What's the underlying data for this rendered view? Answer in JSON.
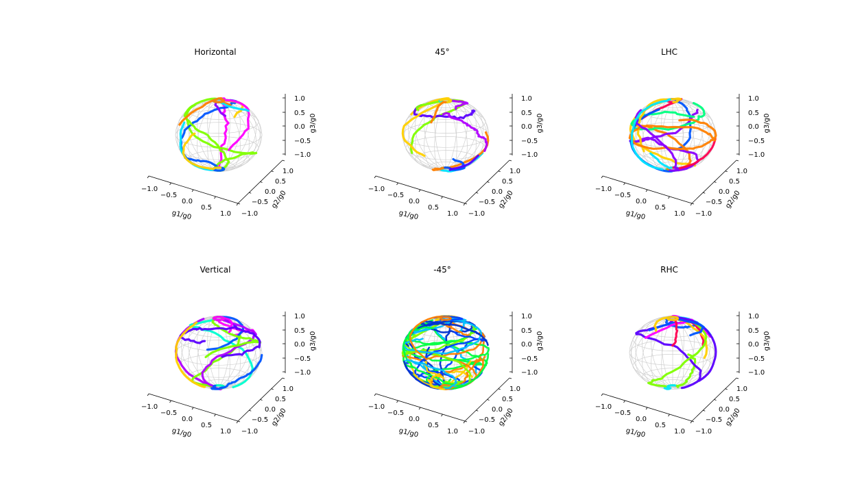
{
  "figure": {
    "background": "#ffffff"
  },
  "chart_data": [
    {
      "type": "scatter",
      "title": "Horizontal",
      "xlabel": "g1/g0",
      "ylabel": "g2/g0",
      "zlabel": "g3/g0",
      "xlim": [
        -1.0,
        1.0
      ],
      "ylim": [
        -1.0,
        1.0
      ],
      "zlim": [
        -1.0,
        1.0
      ],
      "x_ticks": [
        "−1.0",
        "−0.5",
        "0.0",
        "0.5",
        "1.0"
      ],
      "y_ticks": [
        "−1.0",
        "−0.5",
        "0.0",
        "0.5",
        "1.0"
      ],
      "z_ticks": [
        "−1.0",
        "−0.5",
        "0.0",
        "0.5",
        "1.0"
      ],
      "grid": true,
      "wireframe_sphere": true,
      "colormap": "hsv",
      "colors": [
        "#8a00ff",
        "#ff00ff",
        "#7fff00",
        "#0055ff",
        "#00e5ff",
        "#ffd000",
        "#ff7f00"
      ]
    },
    {
      "type": "scatter",
      "title": "45°",
      "xlabel": "g1/g0",
      "ylabel": "g2/g0",
      "zlabel": "g3/g0",
      "xlim": [
        -1.0,
        1.0
      ],
      "ylim": [
        -1.0,
        1.0
      ],
      "zlim": [
        -1.0,
        1.0
      ],
      "x_ticks": [
        "−1.0",
        "−0.5",
        "0.0",
        "0.5",
        "1.0"
      ],
      "y_ticks": [
        "−1.0",
        "−0.5",
        "0.0",
        "0.5",
        "1.0"
      ],
      "z_ticks": [
        "−1.0",
        "−0.5",
        "0.0",
        "0.5",
        "1.0"
      ],
      "grid": true,
      "wireframe_sphere": true,
      "colormap": "hsv",
      "colors": [
        "#7fff00",
        "#b000ff",
        "#00e5ff",
        "#0055ff",
        "#ffd000",
        "#ff7f00",
        "#5a00ff"
      ]
    },
    {
      "type": "scatter",
      "title": "LHC",
      "xlabel": "g1/g0",
      "ylabel": "g2/g0",
      "zlabel": "g3/g0",
      "xlim": [
        -1.0,
        1.0
      ],
      "ylim": [
        -1.0,
        1.0
      ],
      "zlim": [
        -1.0,
        1.0
      ],
      "x_ticks": [
        "−1.0",
        "−0.5",
        "0.0",
        "0.5",
        "1.0"
      ],
      "y_ticks": [
        "−1.0",
        "−0.5",
        "0.0",
        "0.5",
        "1.0"
      ],
      "z_ticks": [
        "−1.0",
        "−0.5",
        "0.0",
        "0.5",
        "1.0"
      ],
      "grid": true,
      "wireframe_sphere": true,
      "colormap": "hsv",
      "colors": [
        "#ff0050",
        "#00ff80",
        "#0055ff",
        "#ffd000",
        "#ff7f00",
        "#8a00ff",
        "#00e5ff"
      ]
    },
    {
      "type": "scatter",
      "title": "Vertical",
      "xlabel": "g1/g0",
      "ylabel": "g2/g0",
      "zlabel": "g3/g0",
      "xlim": [
        -1.0,
        1.0
      ],
      "ylim": [
        -1.0,
        1.0
      ],
      "zlim": [
        -1.0,
        1.0
      ],
      "x_ticks": [
        "−1.0",
        "−0.5",
        "0.0",
        "0.5",
        "1.0"
      ],
      "y_ticks": [
        "−1.0",
        "−0.5",
        "0.0",
        "0.5",
        "1.0"
      ],
      "z_ticks": [
        "−1.0",
        "−0.5",
        "0.0",
        "0.5",
        "1.0"
      ],
      "grid": true,
      "wireframe_sphere": true,
      "colormap": "hsv",
      "colors": [
        "#b000ff",
        "#7fff00",
        "#00ffd0",
        "#ff00ff",
        "#5a00ff",
        "#ffd000",
        "#0055ff"
      ]
    },
    {
      "type": "scatter",
      "title": "-45°",
      "xlabel": "g1/g0",
      "ylabel": "g2/g0",
      "zlabel": "g3/g0",
      "xlim": [
        -1.0,
        1.0
      ],
      "ylim": [
        -1.0,
        1.0
      ],
      "zlim": [
        -1.0,
        1.0
      ],
      "x_ticks": [
        "−1.0",
        "−0.5",
        "0.0",
        "0.5",
        "1.0"
      ],
      "y_ticks": [
        "−1.0",
        "−0.5",
        "0.0",
        "0.5",
        "1.0"
      ],
      "z_ticks": [
        "−1.0",
        "−0.5",
        "0.0",
        "0.5",
        "1.0"
      ],
      "grid": true,
      "wireframe_sphere": true,
      "colormap": "hsv",
      "colors": [
        "#0040ff",
        "#00c0ff",
        "#ffd000",
        "#ff8000",
        "#00ff40",
        "#7fff00",
        "#0030d0"
      ]
    },
    {
      "type": "scatter",
      "title": "RHC",
      "xlabel": "g1/g0",
      "ylabel": "g2/g0",
      "zlabel": "g3/g0",
      "xlim": [
        -1.0,
        1.0
      ],
      "ylim": [
        -1.0,
        1.0
      ],
      "zlim": [
        -1.0,
        1.0
      ],
      "x_ticks": [
        "−1.0",
        "−0.5",
        "0.0",
        "0.5",
        "1.0"
      ],
      "y_ticks": [
        "−1.0",
        "−0.5",
        "0.0",
        "0.5",
        "1.0"
      ],
      "z_ticks": [
        "−1.0",
        "−0.5",
        "0.0",
        "0.5",
        "1.0"
      ],
      "grid": true,
      "wireframe_sphere": true,
      "colormap": "hsv",
      "colors": [
        "#7fff00",
        "#ff00ff",
        "#5a00ff",
        "#0055ff",
        "#ff0050",
        "#ffd000",
        "#00e5ff"
      ]
    }
  ]
}
